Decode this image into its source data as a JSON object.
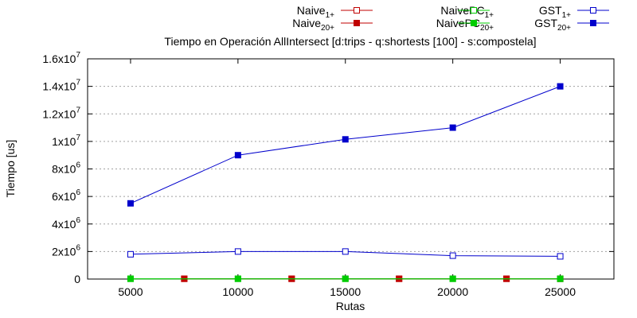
{
  "chart_data": {
    "type": "line",
    "title": "Tiempo en Operación AllIntersect [d:trips - q:shortests [100] - s:compostela]",
    "xlabel": "Rutas",
    "ylabel": "Tiempo [us]",
    "xlim": [
      3000,
      27500
    ],
    "ylim": [
      0,
      16000000
    ],
    "xticks": [
      5000,
      10000,
      15000,
      20000,
      25000
    ],
    "yticks": [
      {
        "value": 0,
        "mant": "0",
        "exp": ""
      },
      {
        "value": 2000000,
        "mant": "2x10",
        "exp": "6"
      },
      {
        "value": 4000000,
        "mant": "4x10",
        "exp": "6"
      },
      {
        "value": 6000000,
        "mant": "6x10",
        "exp": "6"
      },
      {
        "value": 8000000,
        "mant": "8x10",
        "exp": "6"
      },
      {
        "value": 10000000,
        "mant": "1x10",
        "exp": "7"
      },
      {
        "value": 12000000,
        "mant": "1.2x10",
        "exp": "7"
      },
      {
        "value": 14000000,
        "mant": "1.4x10",
        "exp": "7"
      },
      {
        "value": 16000000,
        "mant": "1.6x10",
        "exp": "7"
      }
    ],
    "grid": "horizontal",
    "legend_position": "top",
    "series": [
      {
        "name": "Naive",
        "sub": "1+",
        "color": "#c00000",
        "marker": "open-square",
        "x": [
          7500,
          12500,
          17500,
          22500,
          25000
        ],
        "values": [
          20000,
          20000,
          20000,
          20000,
          20000
        ]
      },
      {
        "name": "Naive",
        "sub": "20+",
        "color": "#c00000",
        "marker": "filled-square",
        "x": [
          7500,
          12500,
          17500,
          22500,
          25000
        ],
        "values": [
          20000,
          20000,
          20000,
          20000,
          20000
        ]
      },
      {
        "name": "NaivePC",
        "sub": "1+",
        "color": "#00cc00",
        "marker": "open-square",
        "x": [
          5000,
          10000,
          15000,
          20000,
          25000
        ],
        "values": [
          20000,
          20000,
          20000,
          20000,
          20000
        ]
      },
      {
        "name": "NaivePC",
        "sub": "20+",
        "color": "#00cc00",
        "marker": "filled-square",
        "x": [
          5000,
          10000,
          15000,
          20000,
          25000
        ],
        "values": [
          20000,
          20000,
          20000,
          20000,
          20000
        ]
      },
      {
        "name": "GST",
        "sub": "1+",
        "color": "#0000cc",
        "marker": "open-square",
        "x": [
          5000,
          10000,
          15000,
          20000,
          25000
        ],
        "values": [
          1800000,
          2000000,
          2000000,
          1700000,
          1650000
        ]
      },
      {
        "name": "GST",
        "sub": "20+",
        "color": "#0000cc",
        "marker": "filled-square",
        "x": [
          5000,
          10000,
          15000,
          20000,
          25000
        ],
        "values": [
          5500000,
          9000000,
          10150000,
          11000000,
          14000000
        ]
      }
    ]
  }
}
